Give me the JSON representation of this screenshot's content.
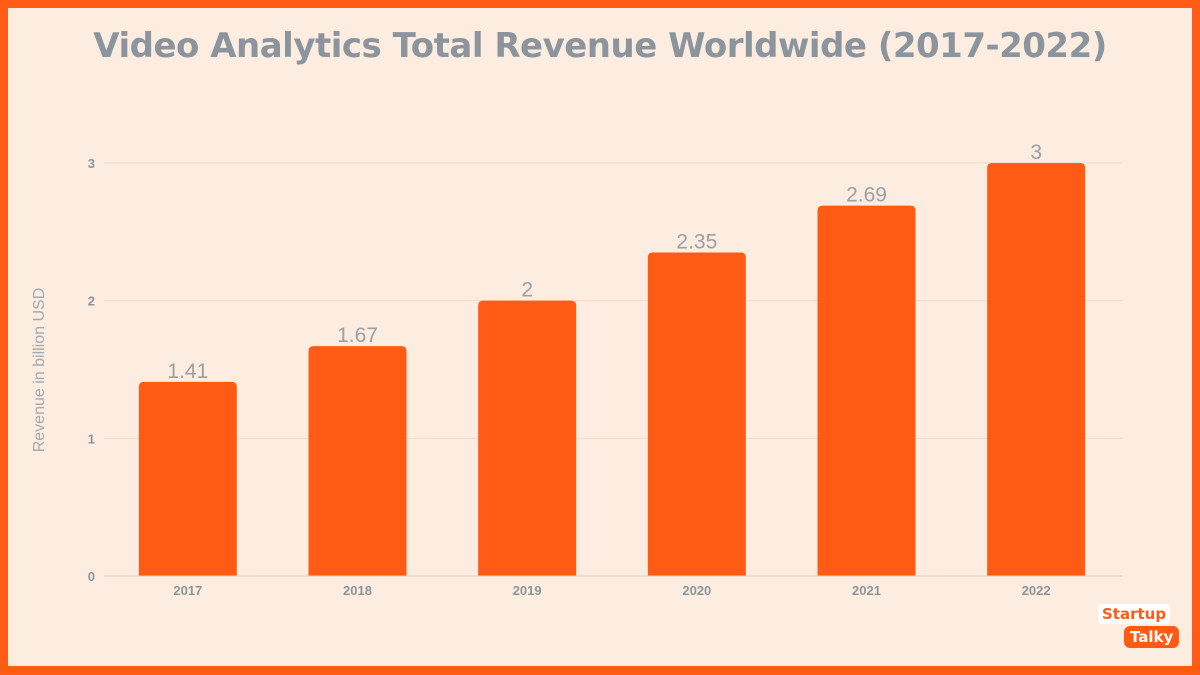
{
  "chart_data": {
    "type": "bar",
    "title": "Video Analytics Total Revenue Worldwide (2017-2022)",
    "xlabel": "",
    "ylabel": "Revenue in billion USD",
    "categories": [
      "2017",
      "2018",
      "2019",
      "2020",
      "2021",
      "2022"
    ],
    "values": [
      1.41,
      1.67,
      2,
      2.35,
      2.69,
      3
    ],
    "data_labels": [
      "1.41",
      "1.67",
      "2",
      "2.35",
      "2.69",
      "3"
    ],
    "ylim": [
      0,
      3
    ],
    "yticks": [
      "0",
      "1",
      "2",
      "3"
    ],
    "grid": true,
    "bar_color": "#FF5B14",
    "background_color": "#FDEDE0"
  },
  "logo": {
    "line1": "Startup",
    "line2": "Talky"
  }
}
